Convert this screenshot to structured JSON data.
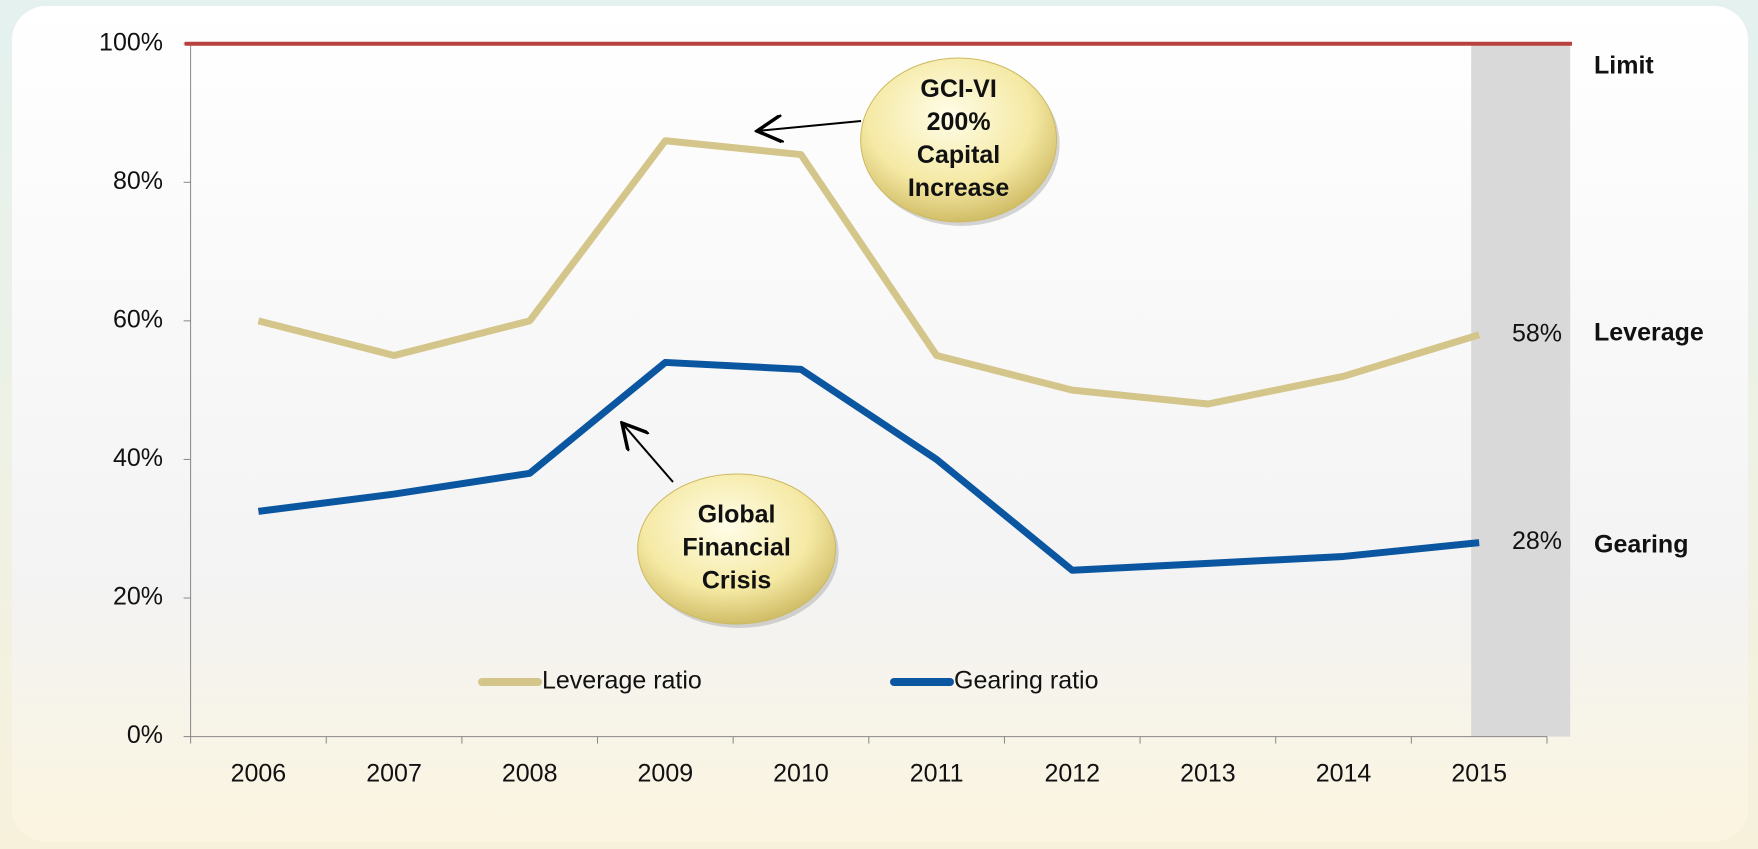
{
  "chart_data": {
    "type": "line",
    "categories": [
      "2006",
      "2007",
      "2008",
      "2009",
      "2010",
      "2011",
      "2012",
      "2013",
      "2014",
      "2015"
    ],
    "series": [
      {
        "name": "Leverage ratio",
        "label": "Leverage",
        "color": "#d4c58a",
        "values": [
          60,
          55,
          60,
          86,
          84,
          55,
          50,
          48,
          52,
          58
        ],
        "value_labels": [
          null,
          null,
          null,
          null,
          null,
          null,
          null,
          null,
          null,
          "58%"
        ]
      },
      {
        "name": "Gearing ratio",
        "label": "Gearing",
        "color": "#0b56a0",
        "values": [
          32.5,
          35,
          38,
          54,
          53,
          40,
          24,
          25,
          26,
          28
        ],
        "value_labels": [
          null,
          null,
          null,
          null,
          null,
          null,
          null,
          null,
          null,
          "28%"
        ]
      }
    ],
    "limit": {
      "label": "Limit",
      "value": 100,
      "color": "#b8403e"
    },
    "ylim": [
      0,
      100
    ],
    "yticks": [
      {
        "value": 0,
        "label": "0%"
      },
      {
        "value": 20,
        "label": "20%"
      },
      {
        "value": 40,
        "label": "40%"
      },
      {
        "value": 60,
        "label": "60%"
      },
      {
        "value": 80,
        "label": "80%"
      },
      {
        "value": 100,
        "label": "100%"
      }
    ],
    "annotations": [
      {
        "lines": [
          "GCI-VI",
          "200%",
          "Capital",
          "Increase"
        ]
      },
      {
        "lines": [
          "Global",
          "Financial",
          "Crisis"
        ]
      }
    ],
    "highlight_category": 9
  }
}
